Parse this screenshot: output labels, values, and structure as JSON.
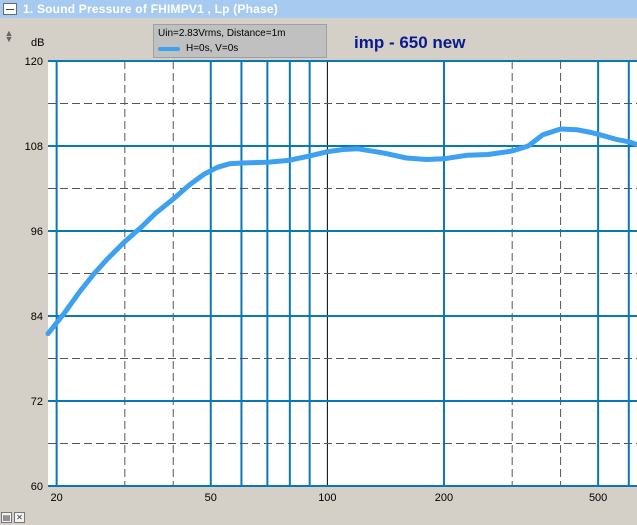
{
  "window": {
    "title": "1. Sound Pressure of FHIMPV1 , Lp (Phase)"
  },
  "legend": {
    "line1": "Uin=2.83Vrms, Distance=1m",
    "series_label": "H=0s, V=0s"
  },
  "colors": {
    "series": "#3ea0f0",
    "grid": "#0a78b4",
    "plot_bg": "#ffffff",
    "annotation": "#0a1a8c"
  },
  "chart_data": {
    "type": "line",
    "title": "1. Sound Pressure of FHIMPV1 , Lp (Phase)",
    "ylabel": "dB",
    "xscale": "log",
    "xlim": [
      19,
      630
    ],
    "ylim": [
      60,
      120
    ],
    "yticks": [
      60,
      72,
      84,
      96,
      108,
      120
    ],
    "xticks": [
      20,
      50,
      100,
      200,
      500
    ],
    "annotation": "imp - 650 new",
    "legend": {
      "position": "top-left",
      "entries": [
        "H=0s, V=0s"
      ]
    },
    "grid": true,
    "series": [
      {
        "name": "H=0s, V=0s",
        "x": [
          19,
          21,
          23,
          25,
          27,
          30,
          33,
          36,
          40,
          44,
          48,
          52,
          56,
          60,
          70,
          80,
          90,
          100,
          110,
          120,
          140,
          160,
          180,
          200,
          230,
          260,
          300,
          330,
          360,
          400,
          440,
          480,
          520,
          560,
          600,
          630
        ],
        "y": [
          81.5,
          84.5,
          87.5,
          90,
          92,
          94.5,
          96.5,
          98.5,
          100.5,
          102.5,
          104,
          105,
          105.5,
          105.6,
          105.7,
          106,
          106.6,
          107.2,
          107.5,
          107.6,
          107,
          106.3,
          106.1,
          106.2,
          106.7,
          106.8,
          107.3,
          108,
          109.6,
          110.4,
          110.3,
          109.9,
          109.4,
          108.9,
          108.6,
          108.2
        ]
      }
    ]
  }
}
